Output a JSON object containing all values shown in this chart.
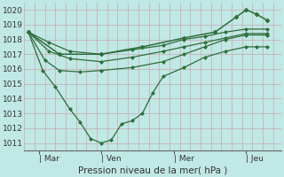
{
  "bg_color": "#c0e8e4",
  "grid_color": "#c8a8b4",
  "line_color": "#2d6e3a",
  "xlabel": "Pression niveau de la mer( hPa )",
  "ylim": [
    1010.5,
    1020.5
  ],
  "yticks": [
    1011,
    1012,
    1013,
    1014,
    1015,
    1016,
    1017,
    1018,
    1019,
    1020
  ],
  "xtick_labels": [
    "| Mar",
    "| Ven",
    "| Mer",
    "| Jeu"
  ],
  "xtick_pos": [
    0.5,
    3.5,
    7.0,
    10.5
  ],
  "xlim": [
    -0.2,
    12.2
  ],
  "series": [
    {
      "x": [
        0.0,
        1.0,
        2.0,
        3.5,
        5.0,
        6.5,
        7.5,
        8.5,
        9.5,
        10.5,
        11.5
      ],
      "y": [
        1018.5,
        1017.8,
        1017.2,
        1017.0,
        1017.3,
        1017.6,
        1018.0,
        1018.2,
        1018.5,
        1018.7,
        1018.7
      ],
      "marker": "D",
      "markersize": 2.0,
      "linewidth": 0.9
    },
    {
      "x": [
        0.0,
        1.0,
        2.0,
        3.5,
        5.0,
        6.5,
        7.5,
        8.5,
        9.5,
        10.5,
        11.5
      ],
      "y": [
        1018.5,
        1017.2,
        1016.7,
        1016.5,
        1016.8,
        1017.2,
        1017.5,
        1017.8,
        1018.1,
        1018.4,
        1018.4
      ],
      "marker": "D",
      "markersize": 2.0,
      "linewidth": 0.9
    },
    {
      "x": [
        0.0,
        0.8,
        1.5,
        2.5,
        3.5,
        5.0,
        6.5,
        7.5,
        8.5,
        9.5,
        10.5,
        11.5
      ],
      "y": [
        1018.5,
        1016.6,
        1015.9,
        1015.8,
        1015.9,
        1016.1,
        1016.5,
        1017.0,
        1017.5,
        1018.0,
        1018.3,
        1018.3
      ],
      "marker": "D",
      "markersize": 2.0,
      "linewidth": 0.9
    },
    {
      "x": [
        0.0,
        0.7,
        1.3,
        2.0,
        2.5,
        3.0,
        3.5,
        4.0,
        4.5,
        5.0,
        5.5,
        6.0,
        6.5,
        7.5,
        8.5,
        9.5,
        10.5,
        11.0,
        11.5
      ],
      "y": [
        1018.5,
        1015.9,
        1014.8,
        1013.3,
        1012.4,
        1011.3,
        1011.0,
        1011.2,
        1012.3,
        1012.5,
        1013.0,
        1014.4,
        1015.5,
        1016.1,
        1016.8,
        1017.2,
        1017.5,
        1017.5,
        1017.5
      ],
      "marker": "D",
      "markersize": 2.0,
      "linewidth": 0.9
    },
    {
      "x": [
        0.0,
        1.5,
        3.5,
        5.5,
        7.5,
        9.0,
        10.0,
        10.5,
        11.0,
        11.5
      ],
      "y": [
        1018.5,
        1017.0,
        1017.0,
        1017.5,
        1018.1,
        1018.5,
        1019.5,
        1020.0,
        1019.7,
        1019.3
      ],
      "marker": "D",
      "markersize": 2.5,
      "linewidth": 1.1
    }
  ]
}
